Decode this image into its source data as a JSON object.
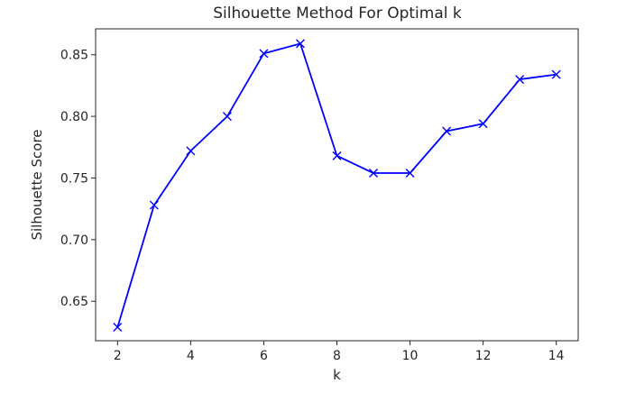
{
  "chart_data": {
    "type": "line",
    "title": "Silhouette Method For Optimal k",
    "xlabel": "k",
    "ylabel": "Silhouette Score",
    "x": [
      2,
      3,
      4,
      5,
      6,
      7,
      8,
      9,
      10,
      11,
      12,
      13,
      14
    ],
    "series": [
      {
        "values": [
          0.629,
          0.728,
          0.772,
          0.8,
          0.851,
          0.859,
          0.768,
          0.754,
          0.754,
          0.788,
          0.794,
          0.83,
          0.834
        ],
        "color": "#0000ff",
        "marker": "x"
      }
    ],
    "xlim": [
      1.4,
      14.6
    ],
    "ylim": [
      0.618,
      0.871
    ],
    "xticks": [
      2,
      4,
      6,
      8,
      10,
      12,
      14
    ],
    "xtick_labels": [
      "2",
      "4",
      "6",
      "8",
      "10",
      "12",
      "14"
    ],
    "yticks": [
      0.65,
      0.7,
      0.75,
      0.8,
      0.85
    ],
    "ytick_labels": [
      "0.65",
      "0.70",
      "0.75",
      "0.80",
      "0.85"
    ],
    "grid": false,
    "legend": "none"
  }
}
